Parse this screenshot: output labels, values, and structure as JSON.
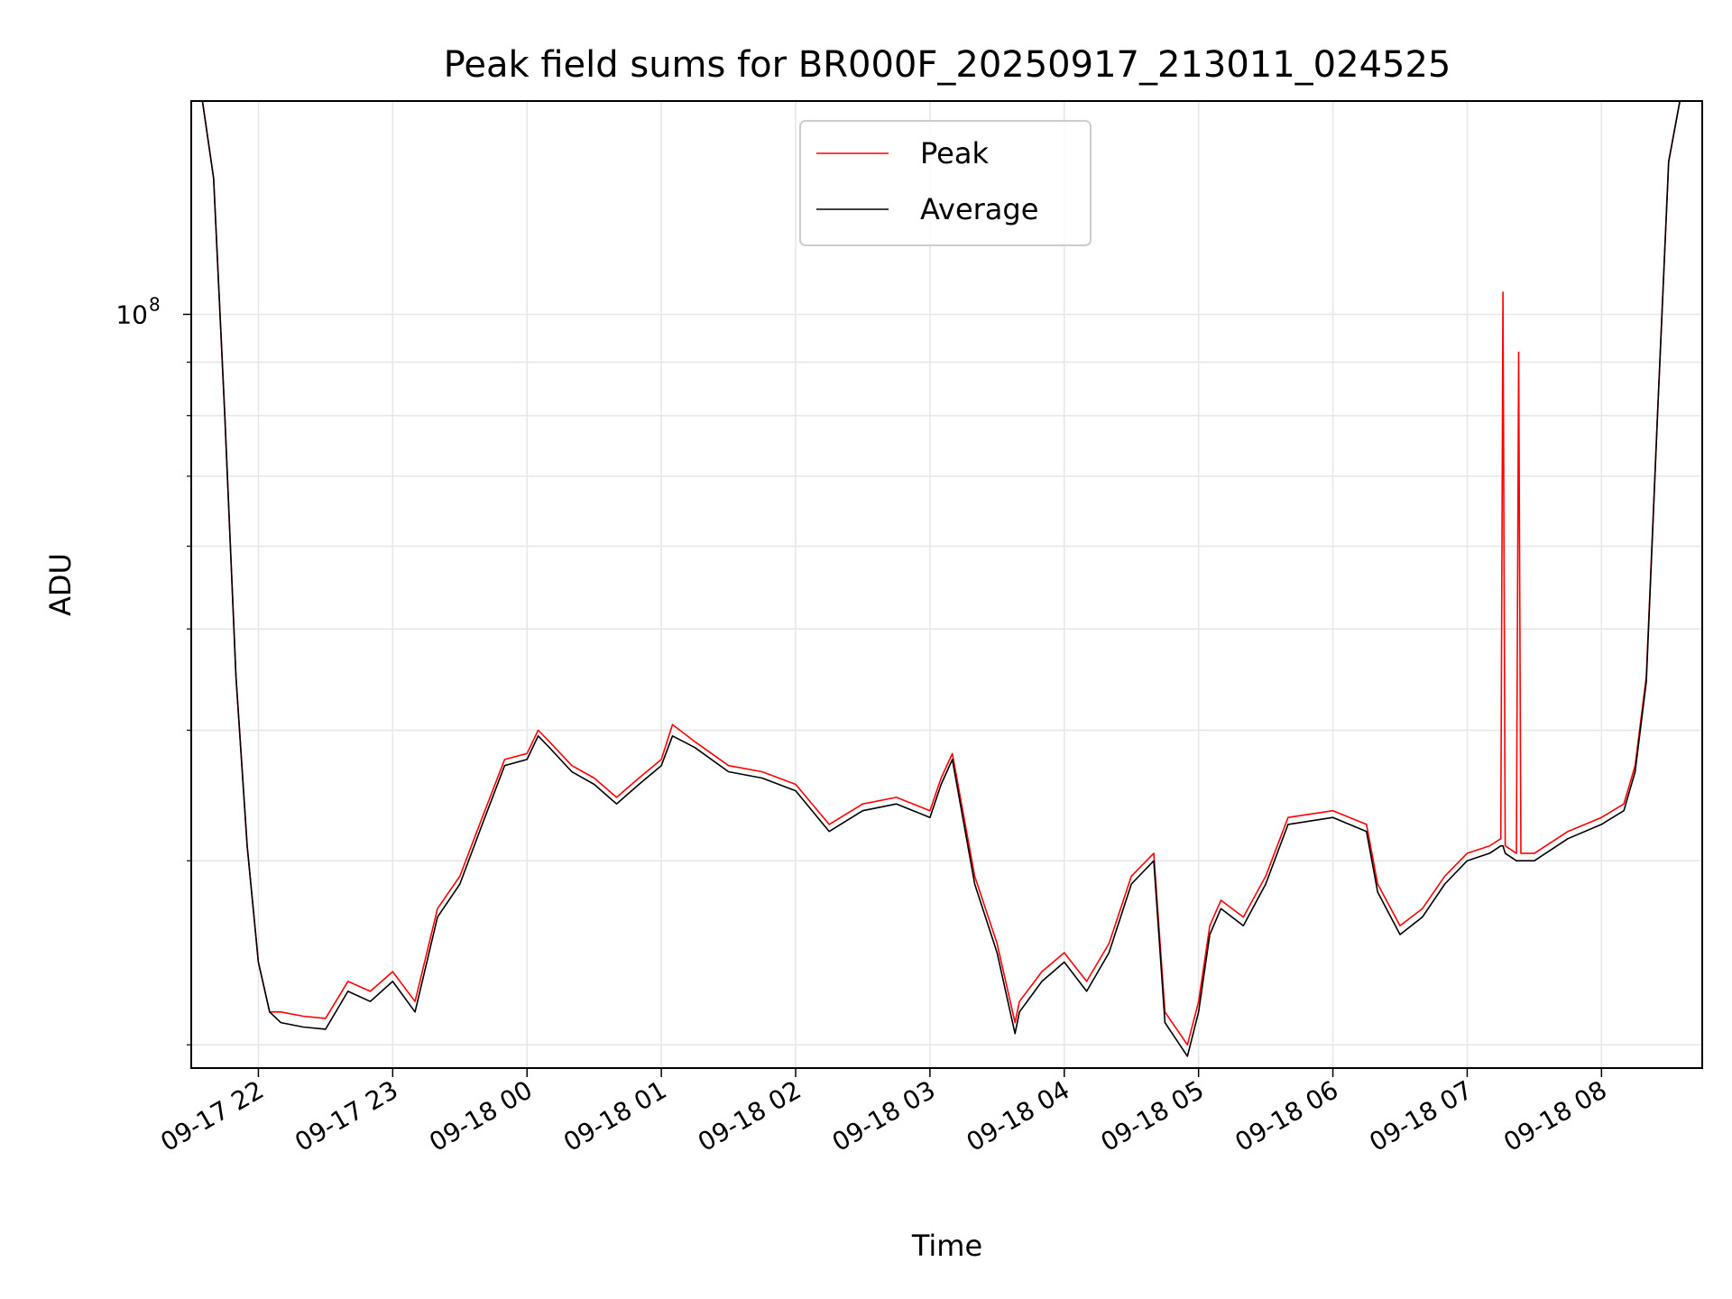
{
  "chart_data": {
    "type": "line",
    "title": "Peak field sums for BR000F_20250917_213011_024525",
    "xlabel": "Time",
    "ylabel": "ADU",
    "yscale": "log",
    "grid": true,
    "legend_position": "top-center",
    "x_range": [
      "2025-09-17 21:30",
      "2025-09-18 08:45"
    ],
    "ylim": [
      19000000,
      160000000
    ],
    "x_ticks": [
      {
        "value": "2025-09-17 22:00",
        "label": "09-17 22"
      },
      {
        "value": "2025-09-17 23:00",
        "label": "09-17 23"
      },
      {
        "value": "2025-09-18 00:00",
        "label": "09-18 00"
      },
      {
        "value": "2025-09-18 01:00",
        "label": "09-18 01"
      },
      {
        "value": "2025-09-18 02:00",
        "label": "09-18 02"
      },
      {
        "value": "2025-09-18 03:00",
        "label": "09-18 03"
      },
      {
        "value": "2025-09-18 04:00",
        "label": "09-18 04"
      },
      {
        "value": "2025-09-18 05:00",
        "label": "09-18 05"
      },
      {
        "value": "2025-09-18 06:00",
        "label": "09-18 06"
      },
      {
        "value": "2025-09-18 07:00",
        "label": "09-18 07"
      },
      {
        "value": "2025-09-18 08:00",
        "label": "09-18 08"
      }
    ],
    "y_major_ticks": [
      {
        "value": 100000000,
        "base": "10",
        "exp": "8"
      }
    ],
    "y_minor_ticks": [
      20000000,
      30000000,
      40000000,
      50000000,
      60000000,
      70000000,
      80000000,
      90000000,
      200000000
    ],
    "series": [
      {
        "name": "Peak",
        "color": "#ff0000",
        "points": [
          [
            "2025-09-17 21:35",
            160000000
          ],
          [
            "2025-09-17 21:40",
            135000000
          ],
          [
            "2025-09-17 21:45",
            80000000
          ],
          [
            "2025-09-17 21:50",
            45000000
          ],
          [
            "2025-09-17 21:55",
            31000000
          ],
          [
            "2025-09-17 22:00",
            24000000
          ],
          [
            "2025-09-17 22:05",
            21500000
          ],
          [
            "2025-09-17 22:10",
            21500000
          ],
          [
            "2025-09-17 22:20",
            21300000
          ],
          [
            "2025-09-17 22:30",
            21200000
          ],
          [
            "2025-09-17 22:40",
            23000000
          ],
          [
            "2025-09-17 22:50",
            22500000
          ],
          [
            "2025-09-17 23:00",
            23500000
          ],
          [
            "2025-09-17 23:10",
            22000000
          ],
          [
            "2025-09-17 23:20",
            27000000
          ],
          [
            "2025-09-17 23:30",
            29000000
          ],
          [
            "2025-09-17 23:40",
            33000000
          ],
          [
            "2025-09-17 23:50",
            37500000
          ],
          [
            "2025-09-18 00:00",
            38000000
          ],
          [
            "2025-09-18 00:05",
            40000000
          ],
          [
            "2025-09-18 00:10",
            39000000
          ],
          [
            "2025-09-18 00:20",
            37000000
          ],
          [
            "2025-09-18 00:30",
            36000000
          ],
          [
            "2025-09-18 00:40",
            34500000
          ],
          [
            "2025-09-18 00:50",
            36000000
          ],
          [
            "2025-09-18 01:00",
            37500000
          ],
          [
            "2025-09-18 01:05",
            40500000
          ],
          [
            "2025-09-18 01:15",
            39000000
          ],
          [
            "2025-09-18 01:30",
            37000000
          ],
          [
            "2025-09-18 01:45",
            36500000
          ],
          [
            "2025-09-18 02:00",
            35500000
          ],
          [
            "2025-09-18 02:15",
            32500000
          ],
          [
            "2025-09-18 02:30",
            34000000
          ],
          [
            "2025-09-18 02:45",
            34500000
          ],
          [
            "2025-09-18 03:00",
            33500000
          ],
          [
            "2025-09-18 03:05",
            36000000
          ],
          [
            "2025-09-18 03:10",
            38000000
          ],
          [
            "2025-09-18 03:20",
            29000000
          ],
          [
            "2025-09-18 03:30",
            25000000
          ],
          [
            "2025-09-18 03:38",
            21000000
          ],
          [
            "2025-09-18 03:40",
            22000000
          ],
          [
            "2025-09-18 03:50",
            23500000
          ],
          [
            "2025-09-18 04:00",
            24500000
          ],
          [
            "2025-09-18 04:10",
            23000000
          ],
          [
            "2025-09-18 04:20",
            25000000
          ],
          [
            "2025-09-18 04:30",
            29000000
          ],
          [
            "2025-09-18 04:40",
            30500000
          ],
          [
            "2025-09-18 04:45",
            21500000
          ],
          [
            "2025-09-18 04:55",
            20000000
          ],
          [
            "2025-09-18 05:00",
            22000000
          ],
          [
            "2025-09-18 05:05",
            26000000
          ],
          [
            "2025-09-18 05:10",
            27500000
          ],
          [
            "2025-09-18 05:20",
            26500000
          ],
          [
            "2025-09-18 05:30",
            29000000
          ],
          [
            "2025-09-18 05:40",
            33000000
          ],
          [
            "2025-09-18 06:00",
            33500000
          ],
          [
            "2025-09-18 06:15",
            32500000
          ],
          [
            "2025-09-18 06:20",
            28500000
          ],
          [
            "2025-09-18 06:30",
            26000000
          ],
          [
            "2025-09-18 06:40",
            27000000
          ],
          [
            "2025-09-18 06:50",
            29000000
          ],
          [
            "2025-09-18 07:00",
            30500000
          ],
          [
            "2025-09-18 07:10",
            31000000
          ],
          [
            "2025-09-18 07:15",
            31500000
          ],
          [
            "2025-09-18 07:16",
            105000000
          ],
          [
            "2025-09-18 07:17",
            31000000
          ],
          [
            "2025-09-18 07:22",
            30500000
          ],
          [
            "2025-09-18 07:23",
            92000000
          ],
          [
            "2025-09-18 07:24",
            30500000
          ],
          [
            "2025-09-18 07:30",
            30500000
          ],
          [
            "2025-09-18 07:45",
            32000000
          ],
          [
            "2025-09-18 08:00",
            33000000
          ],
          [
            "2025-09-18 08:10",
            34000000
          ],
          [
            "2025-09-18 08:15",
            37000000
          ],
          [
            "2025-09-18 08:20",
            45000000
          ],
          [
            "2025-09-18 08:25",
            80000000
          ],
          [
            "2025-09-18 08:30",
            140000000
          ],
          [
            "2025-09-18 08:35",
            160000000
          ]
        ]
      },
      {
        "name": "Average",
        "color": "#000000",
        "points": [
          [
            "2025-09-17 21:35",
            160000000
          ],
          [
            "2025-09-17 21:40",
            135000000
          ],
          [
            "2025-09-17 21:45",
            80000000
          ],
          [
            "2025-09-17 21:50",
            45000000
          ],
          [
            "2025-09-17 21:55",
            31000000
          ],
          [
            "2025-09-17 22:00",
            24000000
          ],
          [
            "2025-09-17 22:05",
            21500000
          ],
          [
            "2025-09-17 22:10",
            21000000
          ],
          [
            "2025-09-17 22:20",
            20800000
          ],
          [
            "2025-09-17 22:30",
            20700000
          ],
          [
            "2025-09-17 22:40",
            22500000
          ],
          [
            "2025-09-17 22:50",
            22000000
          ],
          [
            "2025-09-17 23:00",
            23000000
          ],
          [
            "2025-09-17 23:10",
            21500000
          ],
          [
            "2025-09-17 23:20",
            26500000
          ],
          [
            "2025-09-17 23:30",
            28500000
          ],
          [
            "2025-09-17 23:40",
            32500000
          ],
          [
            "2025-09-17 23:50",
            37000000
          ],
          [
            "2025-09-18 00:00",
            37500000
          ],
          [
            "2025-09-18 00:05",
            39500000
          ],
          [
            "2025-09-18 00:10",
            38500000
          ],
          [
            "2025-09-18 00:20",
            36500000
          ],
          [
            "2025-09-18 00:30",
            35500000
          ],
          [
            "2025-09-18 00:40",
            34000000
          ],
          [
            "2025-09-18 00:50",
            35500000
          ],
          [
            "2025-09-18 01:00",
            37000000
          ],
          [
            "2025-09-18 01:05",
            39500000
          ],
          [
            "2025-09-18 01:15",
            38500000
          ],
          [
            "2025-09-18 01:30",
            36500000
          ],
          [
            "2025-09-18 01:45",
            36000000
          ],
          [
            "2025-09-18 02:00",
            35000000
          ],
          [
            "2025-09-18 02:15",
            32000000
          ],
          [
            "2025-09-18 02:30",
            33500000
          ],
          [
            "2025-09-18 02:45",
            34000000
          ],
          [
            "2025-09-18 03:00",
            33000000
          ],
          [
            "2025-09-18 03:05",
            35500000
          ],
          [
            "2025-09-18 03:10",
            37500000
          ],
          [
            "2025-09-18 03:20",
            28500000
          ],
          [
            "2025-09-18 03:30",
            24500000
          ],
          [
            "2025-09-18 03:38",
            20500000
          ],
          [
            "2025-09-18 03:40",
            21500000
          ],
          [
            "2025-09-18 03:50",
            23000000
          ],
          [
            "2025-09-18 04:00",
            24000000
          ],
          [
            "2025-09-18 04:10",
            22500000
          ],
          [
            "2025-09-18 04:20",
            24500000
          ],
          [
            "2025-09-18 04:30",
            28500000
          ],
          [
            "2025-09-18 04:40",
            30000000
          ],
          [
            "2025-09-18 04:45",
            21000000
          ],
          [
            "2025-09-18 04:55",
            19500000
          ],
          [
            "2025-09-18 05:00",
            21500000
          ],
          [
            "2025-09-18 05:05",
            25500000
          ],
          [
            "2025-09-18 05:10",
            27000000
          ],
          [
            "2025-09-18 05:20",
            26000000
          ],
          [
            "2025-09-18 05:30",
            28500000
          ],
          [
            "2025-09-18 05:40",
            32500000
          ],
          [
            "2025-09-18 06:00",
            33000000
          ],
          [
            "2025-09-18 06:15",
            32000000
          ],
          [
            "2025-09-18 06:20",
            28000000
          ],
          [
            "2025-09-18 06:30",
            25500000
          ],
          [
            "2025-09-18 06:40",
            26500000
          ],
          [
            "2025-09-18 06:50",
            28500000
          ],
          [
            "2025-09-18 07:00",
            30000000
          ],
          [
            "2025-09-18 07:10",
            30500000
          ],
          [
            "2025-09-18 07:15",
            31000000
          ],
          [
            "2025-09-18 07:16",
            31000000
          ],
          [
            "2025-09-18 07:17",
            30500000
          ],
          [
            "2025-09-18 07:22",
            30000000
          ],
          [
            "2025-09-18 07:23",
            30000000
          ],
          [
            "2025-09-18 07:24",
            30000000
          ],
          [
            "2025-09-18 07:30",
            30000000
          ],
          [
            "2025-09-18 07:45",
            31500000
          ],
          [
            "2025-09-18 08:00",
            32500000
          ],
          [
            "2025-09-18 08:10",
            33500000
          ],
          [
            "2025-09-18 08:15",
            36500000
          ],
          [
            "2025-09-18 08:20",
            44500000
          ],
          [
            "2025-09-18 08:25",
            80000000
          ],
          [
            "2025-09-18 08:30",
            140000000
          ],
          [
            "2025-09-18 08:35",
            160000000
          ]
        ]
      }
    ]
  }
}
